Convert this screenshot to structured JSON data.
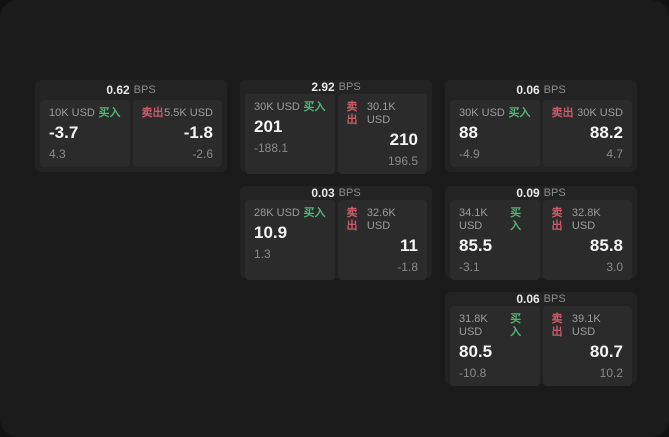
{
  "labels": {
    "bps_suffix": "BPS",
    "buy": "买入",
    "sell": "卖出"
  },
  "colors": {
    "buy_green": "#50b574",
    "sell_red": "#c95c6c",
    "page_bg": "#121212",
    "panel_bg": "#1b1b1b",
    "card_bg": "#232323",
    "tile_bg": "#2b2b2b"
  },
  "cards": [
    {
      "bps": "0.62",
      "row": 1,
      "col": 1,
      "buy": {
        "size": "10K USD",
        "value": "-3.7",
        "delta": "4.3"
      },
      "sell": {
        "size": "5.5K USD",
        "value": "-1.8",
        "delta": "-2.6"
      }
    },
    {
      "bps": "2.92",
      "row": 1,
      "col": 2,
      "buy": {
        "size": "30K USD",
        "value": "201",
        "delta": "-188.1"
      },
      "sell": {
        "size": "30.1K USD",
        "value": "210",
        "delta": "196.5"
      }
    },
    {
      "bps": "0.06",
      "row": 1,
      "col": 3,
      "buy": {
        "size": "30K USD",
        "value": "88",
        "delta": "-4.9"
      },
      "sell": {
        "size": "30K USD",
        "value": "88.2",
        "delta": "4.7"
      }
    },
    {
      "bps": "0.03",
      "row": 2,
      "col": 2,
      "buy": {
        "size": "28K USD",
        "value": "10.9",
        "delta": "1.3"
      },
      "sell": {
        "size": "32.6K USD",
        "value": "11",
        "delta": "-1.8"
      }
    },
    {
      "bps": "0.09",
      "row": 2,
      "col": 3,
      "buy": {
        "size": "34.1K USD",
        "value": "85.5",
        "delta": "-3.1"
      },
      "sell": {
        "size": "32.8K USD",
        "value": "85.8",
        "delta": "3.0"
      }
    },
    {
      "bps": "0.06",
      "row": 3,
      "col": 3,
      "buy": {
        "size": "31.8K USD",
        "value": "80.5",
        "delta": "-10.8"
      },
      "sell": {
        "size": "39.1K USD",
        "value": "80.7",
        "delta": "10.2"
      }
    }
  ]
}
